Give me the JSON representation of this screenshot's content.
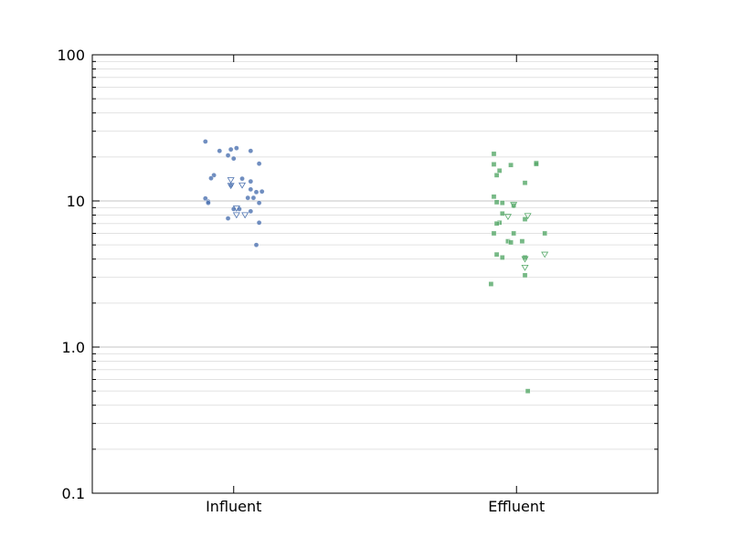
{
  "chart_data": {
    "type": "scatter",
    "title": "",
    "xlabel": "",
    "ylabel": "",
    "yscale": "log",
    "ylim": [
      0.1,
      100
    ],
    "categories": [
      "Influent",
      "Effluent"
    ],
    "y_tick_labels": [
      "0.1",
      "1.0",
      "10",
      "100"
    ],
    "grid": "y-major-and-minor",
    "series": [
      {
        "category": "Influent",
        "color": "#4c72b0",
        "detected": [
          {
            "x": -0.1,
            "y": 25.5
          },
          {
            "x": -0.05,
            "y": 22
          },
          {
            "x": -0.01,
            "y": 22.5
          },
          {
            "x": 0.01,
            "y": 23
          },
          {
            "x": 0.06,
            "y": 22
          },
          {
            "x": -0.02,
            "y": 20.5
          },
          {
            "x": 0.0,
            "y": 19.5
          },
          {
            "x": 0.09,
            "y": 18
          },
          {
            "x": -0.07,
            "y": 15
          },
          {
            "x": -0.08,
            "y": 14.3
          },
          {
            "x": 0.03,
            "y": 14.2
          },
          {
            "x": 0.06,
            "y": 13.6
          },
          {
            "x": -0.01,
            "y": 12.8
          },
          {
            "x": 0.06,
            "y": 12.0
          },
          {
            "x": 0.08,
            "y": 11.5
          },
          {
            "x": 0.1,
            "y": 11.6
          },
          {
            "x": 0.05,
            "y": 10.5
          },
          {
            "x": 0.07,
            "y": 10.5
          },
          {
            "x": -0.1,
            "y": 10.4
          },
          {
            "x": -0.09,
            "y": 9.9
          },
          {
            "x": -0.09,
            "y": 9.7
          },
          {
            "x": 0.09,
            "y": 9.7
          },
          {
            "x": 0.0,
            "y": 8.8
          },
          {
            "x": 0.02,
            "y": 8.8
          },
          {
            "x": 0.06,
            "y": 8.5
          },
          {
            "x": -0.02,
            "y": 7.6
          },
          {
            "x": 0.09,
            "y": 7.1
          },
          {
            "x": 0.08,
            "y": 5.0
          }
        ],
        "non_detect": [
          {
            "x": -0.01,
            "y": 13.9
          },
          {
            "x": -0.01,
            "y": 12.7
          },
          {
            "x": 0.03,
            "y": 12.8
          },
          {
            "x": 0.01,
            "y": 8.9
          },
          {
            "x": 0.01,
            "y": 8.0
          },
          {
            "x": 0.04,
            "y": 8.0
          }
        ]
      },
      {
        "category": "Effluent",
        "color": "#55a868",
        "detected": [
          {
            "x": -0.08,
            "y": 21
          },
          {
            "x": 0.07,
            "y": 18.2
          },
          {
            "x": -0.08,
            "y": 17.8
          },
          {
            "x": -0.02,
            "y": 17.6
          },
          {
            "x": 0.07,
            "y": 17.9
          },
          {
            "x": -0.06,
            "y": 16.1
          },
          {
            "x": -0.07,
            "y": 15.0
          },
          {
            "x": 0.03,
            "y": 13.3
          },
          {
            "x": -0.08,
            "y": 10.7
          },
          {
            "x": -0.07,
            "y": 9.8
          },
          {
            "x": -0.05,
            "y": 9.7
          },
          {
            "x": -0.01,
            "y": 9.3
          },
          {
            "x": -0.05,
            "y": 8.2
          },
          {
            "x": 0.03,
            "y": 7.5
          },
          {
            "x": -0.06,
            "y": 7.1
          },
          {
            "x": -0.07,
            "y": 7.0
          },
          {
            "x": -0.08,
            "y": 6.0
          },
          {
            "x": -0.01,
            "y": 6.0
          },
          {
            "x": 0.1,
            "y": 6.0
          },
          {
            "x": -0.03,
            "y": 5.3
          },
          {
            "x": -0.02,
            "y": 5.2
          },
          {
            "x": 0.02,
            "y": 5.3
          },
          {
            "x": -0.07,
            "y": 4.3
          },
          {
            "x": -0.05,
            "y": 4.1
          },
          {
            "x": 0.03,
            "y": 4.1
          },
          {
            "x": 0.03,
            "y": 3.1
          },
          {
            "x": -0.09,
            "y": 2.7
          },
          {
            "x": 0.04,
            "y": 0.5
          }
        ],
        "non_detect": [
          {
            "x": -0.01,
            "y": 9.4
          },
          {
            "x": -0.03,
            "y": 7.8
          },
          {
            "x": 0.04,
            "y": 7.9
          },
          {
            "x": 0.1,
            "y": 4.3
          },
          {
            "x": 0.03,
            "y": 4.0
          },
          {
            "x": 0.03,
            "y": 3.5
          }
        ]
      }
    ]
  }
}
